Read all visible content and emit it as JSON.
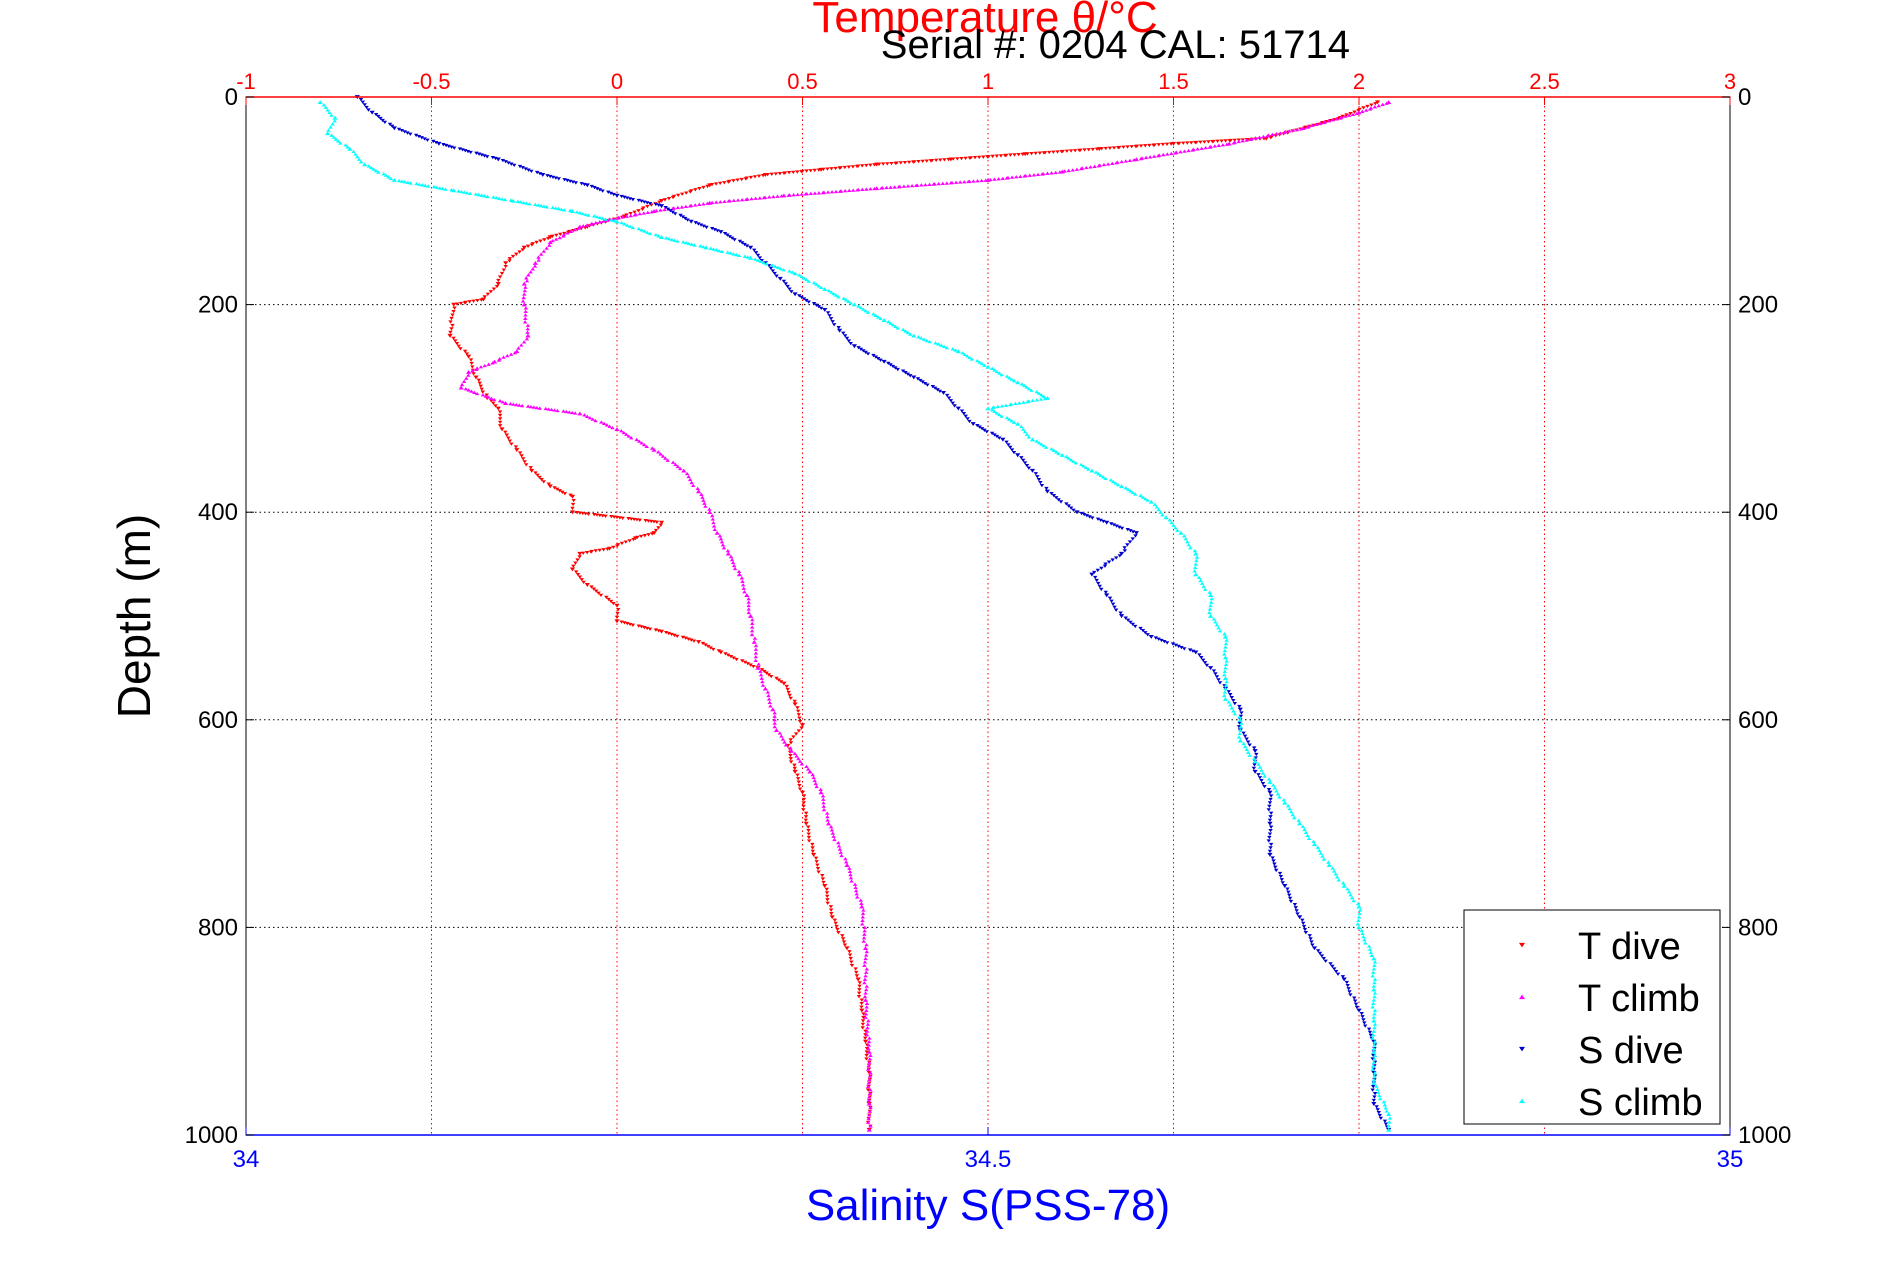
{
  "colors": {
    "t_dive": "#ff0000",
    "t_climb": "#ff00ff",
    "s_dive": "#0000cc",
    "s_climb": "#00ffff",
    "temp_axis": "#ff0000",
    "sal_axis": "#0000ff",
    "depth_axis": "#000000"
  },
  "chart_data": {
    "type": "scatter",
    "title": "Temperature θ/°C",
    "subtitle": "Serial #: 0204   CAL: 51714",
    "ylabel": "Depth (m)",
    "x_top_label": "Temperature θ/°C",
    "x_bottom_label": "Salinity S(PSS-78)",
    "temperature_axis": {
      "range": [
        -1,
        3
      ],
      "ticks": [
        "-1",
        "-0.5",
        "0",
        "0.5",
        "1",
        "1.5",
        "2",
        "2.5",
        "3"
      ],
      "tick_values": [
        -1,
        -0.5,
        0,
        0.5,
        1,
        1.5,
        2,
        2.5,
        3
      ]
    },
    "salinity_axis": {
      "range": [
        34,
        35
      ],
      "ticks": [
        "34",
        "34.5",
        "35"
      ],
      "tick_values": [
        34,
        34.5,
        35
      ]
    },
    "depth_axis": {
      "range": [
        0,
        1000
      ],
      "reversed": true,
      "ticks": [
        "0",
        "200",
        "400",
        "600",
        "800",
        "1000"
      ],
      "tick_values": [
        0,
        200,
        400,
        600,
        800,
        1000
      ]
    },
    "grid": true,
    "legend_position": "bottom-right",
    "series": [
      {
        "name": "T dive",
        "axis": "temperature",
        "marker": "down-triangle",
        "points": [
          [
            2.05,
            5
          ],
          [
            1.95,
            20
          ],
          [
            1.75,
            40
          ],
          [
            1.5,
            45
          ],
          [
            1.3,
            50
          ],
          [
            1.1,
            55
          ],
          [
            0.9,
            60
          ],
          [
            0.7,
            65
          ],
          [
            0.55,
            70
          ],
          [
            0.4,
            75
          ],
          [
            0.25,
            85
          ],
          [
            0.12,
            100
          ],
          [
            0.02,
            115
          ],
          [
            -0.08,
            125
          ],
          [
            -0.18,
            135
          ],
          [
            -0.25,
            145
          ],
          [
            -0.3,
            160
          ],
          [
            -0.32,
            180
          ],
          [
            -0.36,
            195
          ],
          [
            -0.44,
            200
          ],
          [
            -0.45,
            230
          ],
          [
            -0.4,
            250
          ],
          [
            -0.38,
            270
          ],
          [
            -0.35,
            290
          ],
          [
            -0.32,
            300
          ],
          [
            -0.31,
            320
          ],
          [
            -0.27,
            340
          ],
          [
            -0.23,
            360
          ],
          [
            -0.18,
            375
          ],
          [
            -0.12,
            385
          ],
          [
            -0.12,
            400
          ],
          [
            0.12,
            410
          ],
          [
            0.1,
            420
          ],
          [
            0.05,
            425
          ],
          [
            -0.02,
            435
          ],
          [
            -0.1,
            440
          ],
          [
            -0.12,
            455
          ],
          [
            -0.08,
            470
          ],
          [
            0.0,
            490
          ],
          [
            0.0,
            505
          ],
          [
            0.12,
            515
          ],
          [
            0.22,
            525
          ],
          [
            0.28,
            535
          ],
          [
            0.38,
            550
          ],
          [
            0.45,
            565
          ],
          [
            0.48,
            585
          ],
          [
            0.5,
            605
          ],
          [
            0.46,
            625
          ],
          [
            0.48,
            650
          ],
          [
            0.5,
            670
          ],
          [
            0.51,
            700
          ],
          [
            0.53,
            730
          ],
          [
            0.56,
            760
          ],
          [
            0.58,
            790
          ],
          [
            0.62,
            820
          ],
          [
            0.65,
            850
          ],
          [
            0.66,
            880
          ],
          [
            0.67,
            910
          ],
          [
            0.68,
            940
          ],
          [
            0.68,
            970
          ],
          [
            0.68,
            995
          ]
        ]
      },
      {
        "name": "T climb",
        "axis": "temperature",
        "marker": "up-triangle",
        "points": [
          [
            2.08,
            5
          ],
          [
            2.0,
            15
          ],
          [
            1.85,
            30
          ],
          [
            1.65,
            45
          ],
          [
            1.4,
            60
          ],
          [
            1.2,
            72
          ],
          [
            1.0,
            80
          ],
          [
            0.7,
            88
          ],
          [
            0.45,
            95
          ],
          [
            0.25,
            102
          ],
          [
            0.1,
            110
          ],
          [
            -0.02,
            118
          ],
          [
            -0.1,
            125
          ],
          [
            -0.18,
            140
          ],
          [
            -0.22,
            160
          ],
          [
            -0.25,
            180
          ],
          [
            -0.25,
            200
          ],
          [
            -0.24,
            230
          ],
          [
            -0.27,
            245
          ],
          [
            -0.33,
            255
          ],
          [
            -0.4,
            265
          ],
          [
            -0.42,
            280
          ],
          [
            -0.3,
            295
          ],
          [
            -0.1,
            305
          ],
          [
            0.0,
            320
          ],
          [
            0.1,
            340
          ],
          [
            0.18,
            360
          ],
          [
            0.22,
            380
          ],
          [
            0.25,
            400
          ],
          [
            0.27,
            420
          ],
          [
            0.3,
            440
          ],
          [
            0.33,
            460
          ],
          [
            0.35,
            480
          ],
          [
            0.36,
            500
          ],
          [
            0.37,
            525
          ],
          [
            0.38,
            550
          ],
          [
            0.4,
            570
          ],
          [
            0.42,
            590
          ],
          [
            0.43,
            610
          ],
          [
            0.47,
            630
          ],
          [
            0.52,
            650
          ],
          [
            0.55,
            670
          ],
          [
            0.57,
            700
          ],
          [
            0.62,
            740
          ],
          [
            0.66,
            780
          ],
          [
            0.67,
            820
          ],
          [
            0.67,
            870
          ],
          [
            0.68,
            920
          ],
          [
            0.68,
            970
          ],
          [
            0.68,
            995
          ]
        ]
      },
      {
        "name": "S dive",
        "axis": "salinity",
        "marker": "down-triangle",
        "points": [
          [
            34.075,
            0
          ],
          [
            34.085,
            15
          ],
          [
            34.1,
            30
          ],
          [
            34.13,
            45
          ],
          [
            34.17,
            60
          ],
          [
            34.2,
            75
          ],
          [
            34.23,
            85
          ],
          [
            34.25,
            95
          ],
          [
            34.28,
            105
          ],
          [
            34.3,
            120
          ],
          [
            34.32,
            130
          ],
          [
            34.34,
            145
          ],
          [
            34.35,
            160
          ],
          [
            34.36,
            175
          ],
          [
            34.37,
            190
          ],
          [
            34.39,
            205
          ],
          [
            34.4,
            225
          ],
          [
            34.41,
            240
          ],
          [
            34.43,
            255
          ],
          [
            34.45,
            270
          ],
          [
            34.47,
            285
          ],
          [
            34.48,
            300
          ],
          [
            34.49,
            315
          ],
          [
            34.51,
            330
          ],
          [
            34.52,
            345
          ],
          [
            34.53,
            360
          ],
          [
            34.54,
            380
          ],
          [
            34.56,
            400
          ],
          [
            34.58,
            410
          ],
          [
            34.6,
            420
          ],
          [
            34.59,
            440
          ],
          [
            34.57,
            460
          ],
          [
            34.58,
            480
          ],
          [
            34.59,
            500
          ],
          [
            34.61,
            520
          ],
          [
            34.64,
            535
          ],
          [
            34.65,
            550
          ],
          [
            34.66,
            570
          ],
          [
            34.67,
            590
          ],
          [
            34.67,
            610
          ],
          [
            34.68,
            630
          ],
          [
            34.68,
            650
          ],
          [
            34.69,
            670
          ],
          [
            34.69,
            700
          ],
          [
            34.69,
            730
          ],
          [
            34.7,
            760
          ],
          [
            34.71,
            790
          ],
          [
            34.72,
            820
          ],
          [
            34.74,
            850
          ],
          [
            34.75,
            880
          ],
          [
            34.76,
            910
          ],
          [
            34.76,
            940
          ],
          [
            34.76,
            970
          ],
          [
            34.77,
            995
          ]
        ]
      },
      {
        "name": "S climb",
        "axis": "salinity",
        "marker": "up-triangle",
        "points": [
          [
            34.05,
            5
          ],
          [
            34.06,
            20
          ],
          [
            34.055,
            35
          ],
          [
            34.07,
            50
          ],
          [
            34.08,
            65
          ],
          [
            34.1,
            80
          ],
          [
            34.14,
            90
          ],
          [
            34.18,
            100
          ],
          [
            34.22,
            110
          ],
          [
            34.25,
            120
          ],
          [
            34.28,
            135
          ],
          [
            34.31,
            145
          ],
          [
            34.34,
            155
          ],
          [
            34.37,
            170
          ],
          [
            34.39,
            185
          ],
          [
            34.41,
            200
          ],
          [
            34.43,
            215
          ],
          [
            34.45,
            230
          ],
          [
            34.48,
            245
          ],
          [
            34.5,
            260
          ],
          [
            34.52,
            275
          ],
          [
            34.54,
            290
          ],
          [
            34.5,
            300
          ],
          [
            34.52,
            315
          ],
          [
            34.53,
            330
          ],
          [
            34.55,
            345
          ],
          [
            34.57,
            360
          ],
          [
            34.59,
            375
          ],
          [
            34.61,
            390
          ],
          [
            34.62,
            405
          ],
          [
            34.63,
            420
          ],
          [
            34.64,
            440
          ],
          [
            34.64,
            460
          ],
          [
            34.65,
            480
          ],
          [
            34.65,
            500
          ],
          [
            34.66,
            520
          ],
          [
            34.66,
            540
          ],
          [
            34.66,
            560
          ],
          [
            34.66,
            580
          ],
          [
            34.67,
            600
          ],
          [
            34.67,
            620
          ],
          [
            34.68,
            640
          ],
          [
            34.69,
            660
          ],
          [
            34.7,
            680
          ],
          [
            34.71,
            700
          ],
          [
            34.72,
            720
          ],
          [
            34.73,
            740
          ],
          [
            34.74,
            760
          ],
          [
            34.75,
            780
          ],
          [
            34.75,
            800
          ],
          [
            34.76,
            830
          ],
          [
            34.76,
            860
          ],
          [
            34.76,
            890
          ],
          [
            34.76,
            920
          ],
          [
            34.76,
            950
          ],
          [
            34.77,
            980
          ],
          [
            34.77,
            995
          ]
        ]
      }
    ]
  }
}
